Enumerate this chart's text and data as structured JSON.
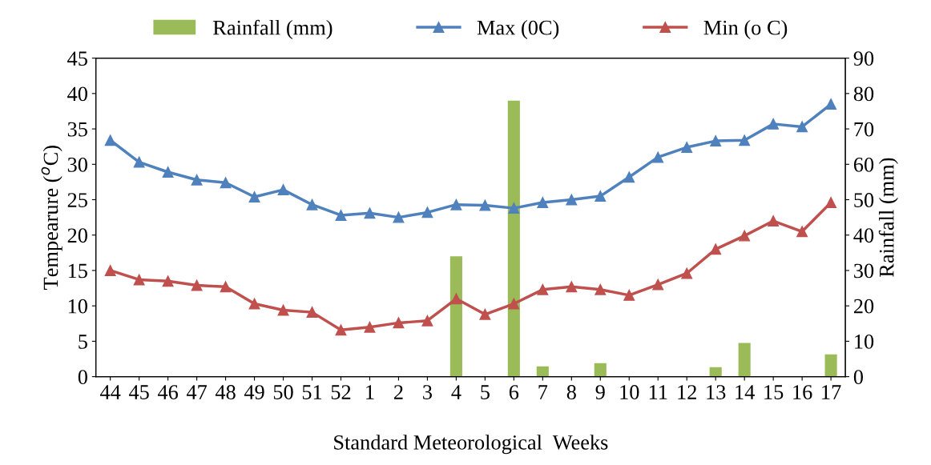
{
  "chart_data": {
    "type": "line",
    "xlabel": "Standard Meteorological  Weeks",
    "ylabel": "Tempearure ($^{o}$C)",
    "y2label": "Rainfall (mm)",
    "categories": [
      "44",
      "45",
      "46",
      "47",
      "48",
      "49",
      "50",
      "51",
      "52",
      "1",
      "2",
      "3",
      "4",
      "5",
      "6",
      "7",
      "8",
      "9",
      "10",
      "11",
      "12",
      "13",
      "14",
      "15",
      "16",
      "17"
    ],
    "series": [
      {
        "name": "Rainfall (mm)",
        "type": "bar",
        "axis": "y2",
        "color": "#9bbb59",
        "values": [
          0,
          0,
          0,
          0,
          0,
          0,
          0,
          0,
          0,
          0,
          0,
          0,
          34,
          0,
          78,
          2.9,
          0,
          3.8,
          0,
          0,
          0,
          2.7,
          9.5,
          0,
          0,
          6.3
        ]
      },
      {
        "name": "Max (0C)",
        "color": "#4f81bd",
        "values": [
          33.4,
          30.3,
          28.9,
          27.8,
          27.4,
          25.4,
          26.4,
          24.3,
          22.8,
          23.1,
          22.5,
          23.2,
          24.3,
          24.2,
          23.8,
          24.6,
          25.0,
          25.5,
          28.2,
          31.0,
          32.4,
          33.3,
          33.4,
          35.7,
          35.3,
          38.5
        ]
      },
      {
        "name": "Min (o C)",
        "color": "#c0504d",
        "values": [
          15.0,
          13.7,
          13.5,
          12.9,
          12.7,
          10.3,
          9.4,
          9.1,
          6.6,
          7.0,
          7.6,
          7.9,
          11.0,
          8.8,
          10.3,
          12.3,
          12.7,
          12.3,
          11.5,
          13.0,
          14.6,
          18.0,
          19.9,
          22.0,
          20.5,
          24.6
        ]
      }
    ],
    "ylim": [
      0,
      45
    ],
    "yticks": [
      0,
      5,
      10,
      15,
      20,
      25,
      30,
      35,
      40,
      45
    ],
    "y2lim": [
      0,
      90
    ],
    "y2ticks": [
      0,
      10,
      20,
      30,
      40,
      50,
      60,
      70,
      80,
      90
    ],
    "marker": "triangle",
    "legend": "top",
    "grid": false
  }
}
